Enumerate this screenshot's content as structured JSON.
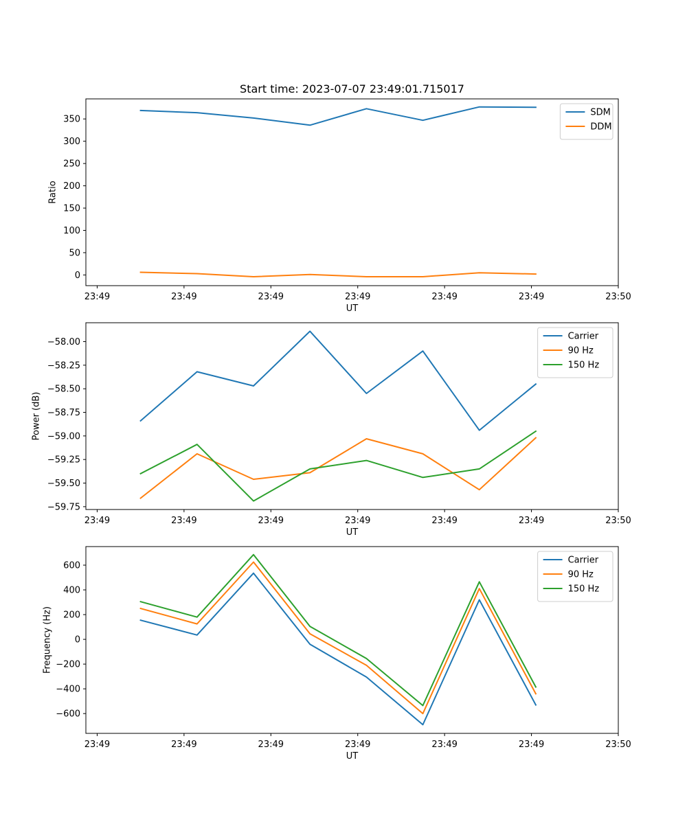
{
  "figure": {
    "title": "Start time: 2023-07-07 23:49:01.715017"
  },
  "colors": {
    "blue": "#1f77b4",
    "orange": "#ff7f0e",
    "green": "#2ca02c"
  },
  "chart_data": [
    {
      "type": "line",
      "name": "ratio",
      "title": "Start time: 2023-07-07 23:49:01.715017",
      "xlabel": "UT",
      "ylabel": "Ratio",
      "x": [
        0.5,
        1.15,
        1.8,
        2.45,
        3.1,
        3.75,
        4.4,
        5.05
      ],
      "xlim": [
        -0.13,
        6.0
      ],
      "x_tick_positions": [
        0,
        1,
        2,
        3,
        4,
        5,
        6
      ],
      "x_tick_labels": [
        "23:49",
        "23:49",
        "23:49",
        "23:49",
        "23:49",
        "23:49",
        "23:50"
      ],
      "ylim": [
        -24,
        395
      ],
      "y_ticks": [
        0,
        50,
        100,
        150,
        200,
        250,
        300,
        350
      ],
      "y_tick_labels": [
        "0",
        "50",
        "100",
        "150",
        "200",
        "250",
        "300",
        "350"
      ],
      "legend_position": "top-right",
      "series": [
        {
          "name": "SDM",
          "color": "#1f77b4",
          "values": [
            369,
            364,
            352,
            336,
            373,
            347,
            377,
            376
          ]
        },
        {
          "name": "DDM",
          "color": "#ff7f0e",
          "values": [
            6,
            3,
            -4,
            1,
            -4,
            -4,
            5,
            2
          ]
        }
      ]
    },
    {
      "type": "line",
      "name": "power",
      "xlabel": "UT",
      "ylabel": "Power (dB)",
      "x": [
        0.5,
        1.15,
        1.8,
        2.45,
        3.1,
        3.75,
        4.4,
        5.05
      ],
      "xlim": [
        -0.13,
        6.0
      ],
      "x_tick_positions": [
        0,
        1,
        2,
        3,
        4,
        5,
        6
      ],
      "x_tick_labels": [
        "23:49",
        "23:49",
        "23:49",
        "23:49",
        "23:49",
        "23:49",
        "23:50"
      ],
      "ylim": [
        -59.78,
        -57.8
      ],
      "y_ticks": [
        -59.75,
        -59.5,
        -59.25,
        -59.0,
        -58.75,
        -58.5,
        -58.25,
        -58.0
      ],
      "y_tick_labels": [
        "−59.75",
        "−59.50",
        "−59.25",
        "−59.00",
        "−58.75",
        "−58.50",
        "−58.25",
        "−58.00"
      ],
      "legend_position": "top-right",
      "series": [
        {
          "name": "Carrier",
          "color": "#1f77b4",
          "values": [
            -58.84,
            -58.32,
            -58.47,
            -57.89,
            -58.55,
            -58.1,
            -58.94,
            -58.45
          ]
        },
        {
          "name": "90 Hz",
          "color": "#ff7f0e",
          "values": [
            -59.66,
            -59.19,
            -59.46,
            -59.39,
            -59.03,
            -59.19,
            -59.57,
            -59.02
          ]
        },
        {
          "name": "150 Hz",
          "color": "#2ca02c",
          "values": [
            -59.4,
            -59.09,
            -59.69,
            -59.35,
            -59.26,
            -59.44,
            -59.35,
            -58.95
          ]
        }
      ]
    },
    {
      "type": "line",
      "name": "frequency",
      "xlabel": "UT",
      "ylabel": "Frequency (Hz)",
      "x": [
        0.5,
        1.15,
        1.8,
        2.45,
        3.1,
        3.75,
        4.4,
        5.05
      ],
      "xlim": [
        -0.13,
        6.0
      ],
      "x_tick_positions": [
        0,
        1,
        2,
        3,
        4,
        5,
        6
      ],
      "x_tick_labels": [
        "23:49",
        "23:49",
        "23:49",
        "23:49",
        "23:49",
        "23:49",
        "23:50"
      ],
      "ylim": [
        -760,
        750
      ],
      "y_ticks": [
        -600,
        -400,
        -200,
        0,
        200,
        400,
        600
      ],
      "y_tick_labels": [
        "−600",
        "−400",
        "−200",
        "0",
        "200",
        "400",
        "600"
      ],
      "legend_position": "top-right",
      "series": [
        {
          "name": "Carrier",
          "color": "#1f77b4",
          "values": [
            155,
            35,
            535,
            -40,
            -305,
            -690,
            320,
            -530
          ]
        },
        {
          "name": "90 Hz",
          "color": "#ff7f0e",
          "values": [
            250,
            125,
            625,
            45,
            -210,
            -600,
            410,
            -440
          ]
        },
        {
          "name": "150 Hz",
          "color": "#2ca02c",
          "values": [
            305,
            180,
            685,
            105,
            -155,
            -535,
            465,
            -385
          ]
        }
      ]
    }
  ]
}
